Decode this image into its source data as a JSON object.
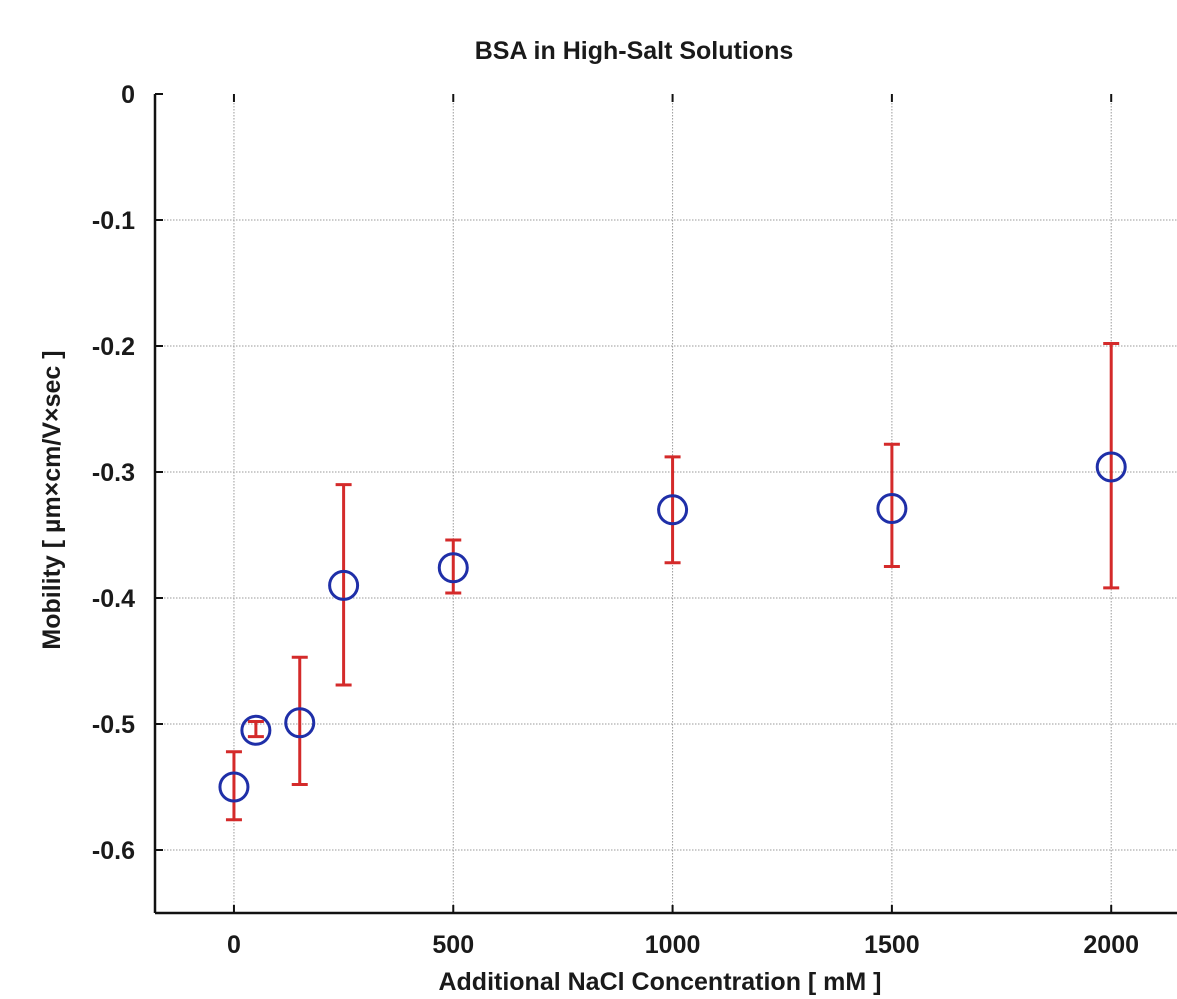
{
  "chart_data": {
    "type": "scatter",
    "title": "BSA in High-Salt Solutions",
    "xlabel": "Additional NaCl Concentration [ mM ]",
    "ylabel": "Mobility [  µm×cm/V×sec ]",
    "xlim": [
      -180,
      2150
    ],
    "ylim": [
      -0.65,
      0
    ],
    "xticks": [
      0,
      500,
      1000,
      1500,
      2000
    ],
    "xtick_labels": [
      "0",
      "500",
      "1000",
      "1500",
      "2000"
    ],
    "yticks": [
      0,
      -0.1,
      -0.2,
      -0.3,
      -0.4,
      -0.5,
      -0.6
    ],
    "ytick_labels": [
      "0",
      "-0.1",
      "-0.2",
      "-0.3",
      "-0.4",
      "-0.5",
      "-0.6"
    ],
    "grid": true,
    "marker": "open-circle",
    "series": [
      {
        "x": [
          0,
          50,
          150,
          250,
          500,
          1000,
          1500,
          2000
        ],
        "y": [
          -0.55,
          -0.505,
          -0.499,
          -0.39,
          -0.376,
          -0.33,
          -0.329,
          -0.296
        ],
        "error_low": [
          -0.576,
          -0.51,
          -0.548,
          -0.469,
          -0.396,
          -0.372,
          -0.375,
          -0.392
        ],
        "error_high": [
          -0.522,
          -0.498,
          -0.447,
          -0.31,
          -0.354,
          -0.288,
          -0.278,
          -0.198
        ]
      }
    ],
    "colors": {
      "marker": "#1f2fa8",
      "error_bar": "#d42a2a",
      "grid": "#9a9a9a",
      "axis": "#111111"
    }
  }
}
